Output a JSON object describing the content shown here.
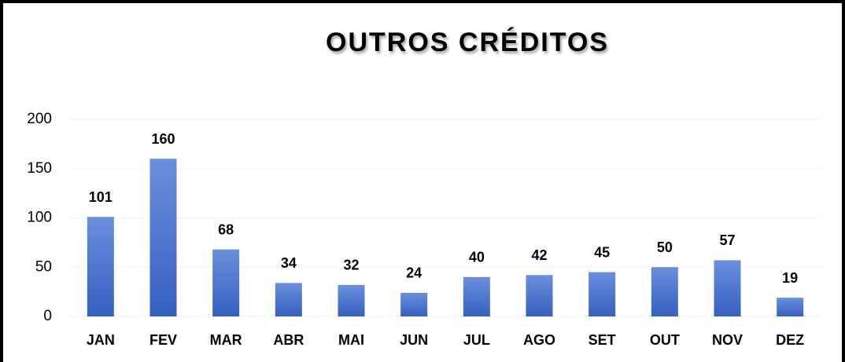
{
  "chart_data": {
    "type": "bar",
    "title": "OUTROS CRÉDITOS",
    "categories": [
      "JAN",
      "FEV",
      "MAR",
      "ABR",
      "MAI",
      "JUN",
      "JUL",
      "AGO",
      "SET",
      "OUT",
      "NOV",
      "DEZ"
    ],
    "values": [
      101,
      160,
      68,
      34,
      32,
      24,
      40,
      42,
      45,
      50,
      57,
      19
    ],
    "color": "#4472c4",
    "ylim": [
      0,
      200
    ],
    "yticks": [
      0,
      50,
      100,
      150,
      200
    ],
    "grid": true
  }
}
